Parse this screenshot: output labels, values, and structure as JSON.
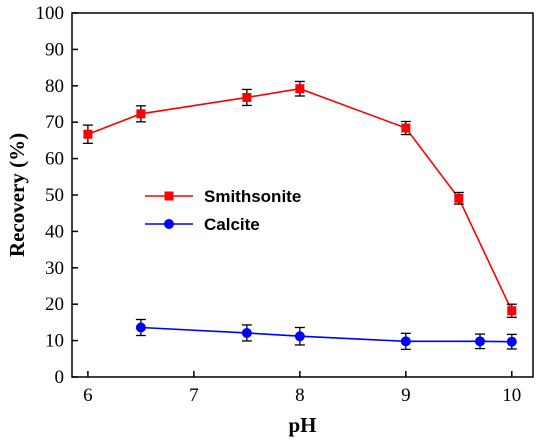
{
  "chart_data": {
    "type": "line",
    "xlabel": "pH",
    "ylabel": "Recovery (%)",
    "xlim": [
      5.85,
      10.2
    ],
    "ylim": [
      0,
      100
    ],
    "xticks": [
      6,
      7,
      8,
      9,
      10
    ],
    "yticks": [
      0,
      10,
      20,
      30,
      40,
      50,
      60,
      70,
      80,
      90,
      100
    ],
    "grid": false,
    "legend_position": "center-left",
    "series": [
      {
        "name": "Smithsonite",
        "color": "#ff0000",
        "marker": "square",
        "x": [
          6,
          6.5,
          7.5,
          8,
          9,
          9.5,
          10
        ],
        "y": [
          66.7,
          72.3,
          76.8,
          79.2,
          68.4,
          49.1,
          18.2
        ],
        "error": [
          2.5,
          2.2,
          2.2,
          2.0,
          1.8,
          1.6,
          1.8
        ]
      },
      {
        "name": "Calcite",
        "color": "#0000ff",
        "marker": "circle",
        "x": [
          6.5,
          7.5,
          8,
          9,
          9.7,
          10
        ],
        "y": [
          13.6,
          12.1,
          11.2,
          9.8,
          9.8,
          9.7
        ],
        "error": [
          2.2,
          2.2,
          2.4,
          2.2,
          2.0,
          2.0
        ]
      }
    ]
  }
}
